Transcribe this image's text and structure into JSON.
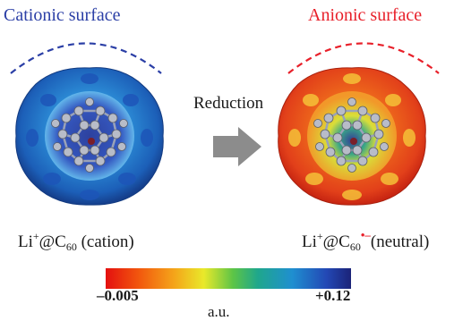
{
  "titles": {
    "left": "Cationic surface",
    "right": "Anionic surface"
  },
  "colors": {
    "cationic": "#2b3fa6",
    "anionic": "#e8202a"
  },
  "reaction": {
    "label": "Reduction"
  },
  "formulas": {
    "left": {
      "base": "Li",
      "charge": "+",
      "at": "@C",
      "sub": "60",
      "note": " (cation)"
    },
    "right": {
      "base": "Li",
      "charge": "+",
      "at": "@C",
      "sub": "60",
      "note": "(neutral)"
    }
  },
  "colorbar": {
    "min": "–0.005",
    "max": "+0.12",
    "unit": "a.u."
  }
}
